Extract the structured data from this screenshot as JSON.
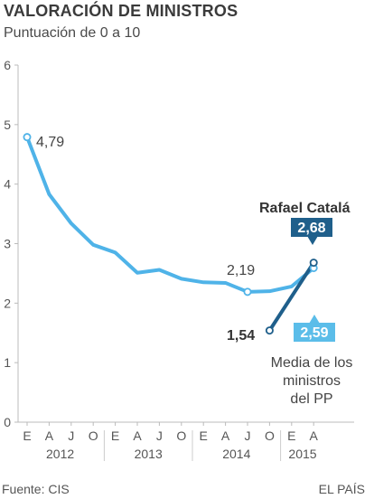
{
  "header": {
    "title": "VALORACIÓN DE MINISTROS",
    "subtitle": "Puntuación de 0 a 10"
  },
  "footer": {
    "source": "Fuente: CIS",
    "brand": "EL PAÍS"
  },
  "colors": {
    "average_line": "#4fb3e8",
    "catala_line": "#1f5f8b",
    "average_label_bg": "#5bbde9",
    "catala_label_bg": "#1f5f8b",
    "grid": "#cccccc"
  },
  "chart_data": {
    "type": "line",
    "title": "VALORACIÓN DE MINISTROS",
    "subtitle": "Puntuación de 0 a 10",
    "ylim": [
      0,
      6
    ],
    "yticks": [
      0,
      1,
      2,
      3,
      4,
      5,
      6
    ],
    "grid": false,
    "x_month_labels": [
      "E",
      "A",
      "J",
      "O",
      "E",
      "A",
      "J",
      "O",
      "E",
      "A",
      "J",
      "O",
      "E",
      "A"
    ],
    "x_year_labels": [
      {
        "label": "2012",
        "start": 0,
        "end": 4
      },
      {
        "label": "2013",
        "start": 4,
        "end": 8
      },
      {
        "label": "2014",
        "start": 8,
        "end": 12
      },
      {
        "label": "2015",
        "start": 12,
        "end": 14
      }
    ],
    "series": [
      {
        "role": "average",
        "x": [
          0,
          1,
          2,
          3,
          4,
          5,
          6,
          7,
          8,
          9,
          10,
          11,
          12,
          13
        ],
        "values": [
          4.79,
          3.83,
          3.34,
          2.98,
          2.85,
          2.51,
          2.56,
          2.41,
          2.35,
          2.34,
          2.19,
          2.2,
          2.28,
          2.59
        ]
      },
      {
        "role": "catala",
        "name": "Rafael Catalá",
        "x": [
          11,
          13
        ],
        "values": [
          1.54,
          2.68
        ]
      }
    ],
    "annotations": {
      "start_value": "4,79",
      "min_value": "2,19",
      "catala_start": "1,54",
      "catala_name": "Rafael Catalá",
      "catala_end": "2,68",
      "average_end": "2,59",
      "average_caption": [
        "Media de los",
        "ministros",
        "del PP"
      ]
    }
  }
}
